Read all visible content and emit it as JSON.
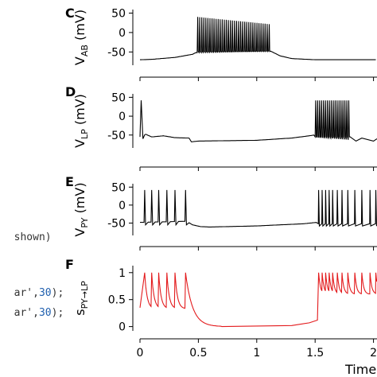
{
  "code_snippet": {
    "lines": [
      {
        "text": "shown)"
      },
      {
        "text": "ar',",
        "num": "30",
        "tail": ");"
      },
      {
        "text": "ar',",
        "num": "30",
        "tail": ");"
      }
    ]
  },
  "panels": {
    "C": {
      "label": "C"
    },
    "D": {
      "label": "D"
    },
    "E": {
      "label": "E"
    },
    "F": {
      "label": "F"
    }
  },
  "x_axis": {
    "label": "Time",
    "ticks": [
      "0",
      "0.5",
      "1",
      "1.5",
      "2"
    ]
  },
  "colors": {
    "voltage": "#000000",
    "synapse": "#e31a1c"
  },
  "chart_data": [
    {
      "type": "line",
      "panel": "C",
      "ylabel_main": "V",
      "ylabel_sub": "AB",
      "ylabel_unit": " (mV)",
      "yticks": [
        "50",
        "0",
        "-50"
      ],
      "ylim": [
        -80,
        55
      ],
      "xlim": [
        0,
        2.03
      ],
      "baseline": {
        "x": [
          0,
          0.1,
          0.3,
          0.45,
          0.49,
          1.1,
          1.2,
          1.3,
          1.5,
          2.03
        ],
        "y": [
          -70,
          -69,
          -64,
          -56,
          -50,
          -45,
          -60,
          -67,
          -70,
          -70
        ]
      },
      "burst": {
        "x_start": 0.49,
        "x_end": 1.12,
        "peak": 40,
        "trough": -52,
        "count": 36
      }
    },
    {
      "type": "line",
      "panel": "D",
      "ylabel_main": "V",
      "ylabel_sub": "LP",
      "ylabel_unit": " (mV)",
      "yticks": [
        "50",
        "0",
        "-50"
      ],
      "ylim": [
        -80,
        55
      ],
      "xlim": [
        0,
        2.03
      ],
      "baseline": {
        "x": [
          0,
          0.05,
          0.1,
          0.2,
          0.3,
          0.42,
          0.44,
          0.5,
          1.0,
          1.3,
          1.45,
          1.49
        ],
        "y": [
          -55,
          -48,
          -55,
          -52,
          -57,
          -58,
          -68,
          -66,
          -64,
          -58,
          -52,
          -50
        ]
      },
      "first_spike": {
        "x": 0.01,
        "peak": 42
      },
      "burst": {
        "x_start": 1.5,
        "x_end": 1.8,
        "peak": 42,
        "trough": -55,
        "count": 18
      },
      "tail": {
        "x": [
          1.8,
          1.85,
          1.9,
          2.0,
          2.03
        ],
        "y": [
          -55,
          -66,
          -58,
          -66,
          -60
        ]
      }
    },
    {
      "type": "line",
      "panel": "E",
      "ylabel_main": "V",
      "ylabel_sub": "PY",
      "ylabel_unit": " (mV)",
      "yticks": [
        "50",
        "0",
        "-50"
      ],
      "ylim": [
        -80,
        55
      ],
      "xlim": [
        0,
        2.03
      ],
      "spikes1": [
        0.04,
        0.1,
        0.16,
        0.23,
        0.3,
        0.39
      ],
      "spike_peak": 42,
      "baseline": {
        "x": [
          0,
          0.4,
          0.45,
          0.52,
          0.6,
          1.0,
          1.4,
          1.52
        ],
        "y": [
          -48,
          -45,
          -55,
          -60,
          -61,
          -58,
          -52,
          -48
        ]
      },
      "spikes2": [
        1.53,
        1.56,
        1.59,
        1.62,
        1.65,
        1.69,
        1.73,
        1.78,
        1.84,
        1.9,
        1.97,
        2.02
      ]
    },
    {
      "type": "line",
      "panel": "F",
      "ylabel_main": "s",
      "ylabel_sub": "PY→LP",
      "ylabel_unit": "",
      "yticks": [
        "1",
        "0.5",
        "0"
      ],
      "ylim": [
        -0.05,
        1.1
      ],
      "xlim": [
        0,
        2.03
      ],
      "peaks1": [
        0.04,
        0.1,
        0.16,
        0.23,
        0.3,
        0.39
      ],
      "decay_floor": 0.0,
      "late_rise": {
        "x": [
          1.3,
          1.45,
          1.52
        ],
        "y": [
          0.02,
          0.07,
          0.12
        ]
      },
      "peaks2": [
        1.53,
        1.56,
        1.59,
        1.62,
        1.65,
        1.69,
        1.73,
        1.78,
        1.84,
        1.9,
        1.97,
        2.02
      ],
      "peak_value": 1.0
    }
  ]
}
